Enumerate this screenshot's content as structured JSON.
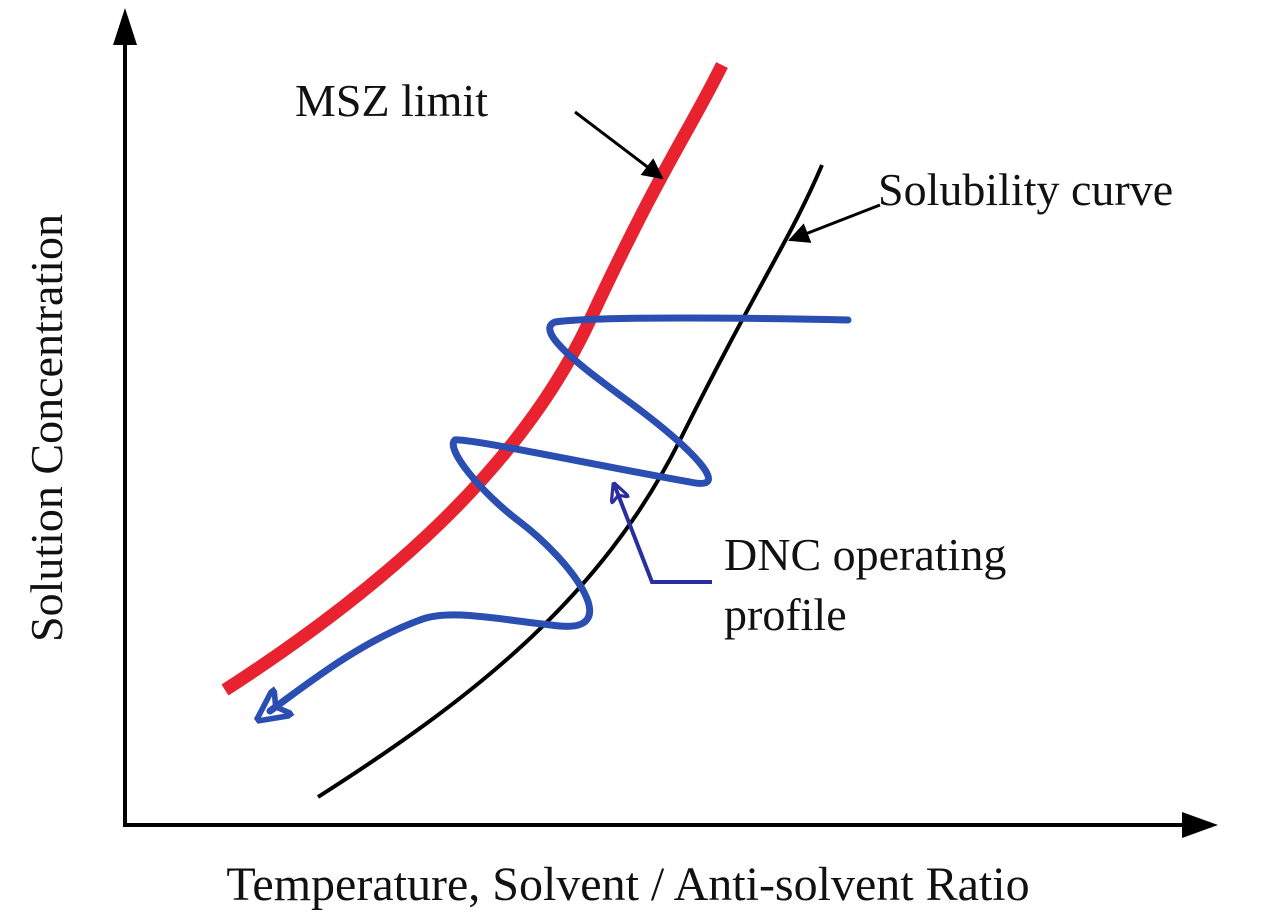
{
  "axes": {
    "x_label": "Temperature, Solvent / Anti-solvent Ratio",
    "y_label": "Solution Concentration"
  },
  "labels": {
    "msz_limit": "MSZ limit",
    "solubility_curve": "Solubility curve",
    "dnc_profile": [
      "DNC operating",
      "profile"
    ]
  }
}
